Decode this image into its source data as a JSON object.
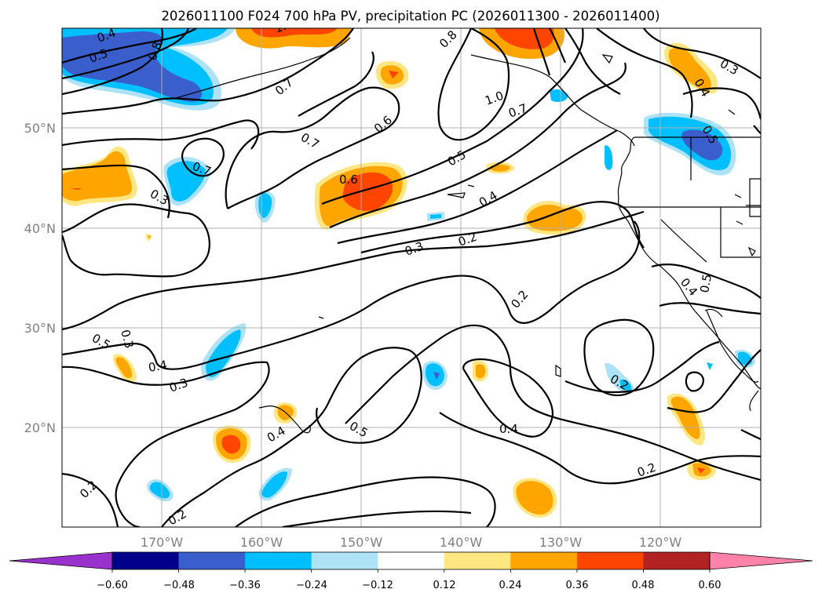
{
  "title": "2026011100 F024 700 hPa PV, precipitation PC (2026011300 - 2026011400)",
  "map": {
    "lon_range": [
      -180,
      -110
    ],
    "lat_range": [
      10,
      60
    ],
    "lon_ticks": [
      "170°W",
      "160°W",
      "150°W",
      "140°W",
      "130°W",
      "120°W"
    ],
    "lat_ticks": [
      "20°N",
      "30°N",
      "40°N",
      "50°N"
    ],
    "grid": true,
    "colors": {
      "coastline": "#000000",
      "contour": "#000000",
      "grid": "#b0b0b0"
    }
  },
  "pv_contour_labels": [
    "0.4",
    "0.5",
    "0.8",
    "0.7",
    "1.0",
    "0.8",
    "0.7",
    "0.7",
    "0.6",
    "0.5",
    "0.4",
    "0.3",
    "0.2",
    "0.6",
    "1.0",
    "0.7",
    "0.3",
    "0.4",
    "0.5",
    "0.7",
    "0.3",
    "0.2",
    "0.3",
    "0.4",
    "0.3",
    "0.4",
    "0.5",
    "0.2",
    "0.4",
    "0.2",
    "0.2",
    "0.2",
    "0.5",
    "0.4",
    "0.5"
  ],
  "colorbar": {
    "tick_labels": [
      "−0.60",
      "−0.48",
      "−0.36",
      "−0.24",
      "−0.12",
      "0.12",
      "0.24",
      "0.36",
      "0.48",
      "0.60"
    ],
    "colors": [
      "#9932cc",
      "#00008b",
      "#3a5fcd",
      "#00bfff",
      "#ade2f7",
      "#ffffff",
      "#ffe680",
      "#ffa500",
      "#ff4500",
      "#b22222",
      "#ff82a8"
    ],
    "extend": "both"
  }
}
